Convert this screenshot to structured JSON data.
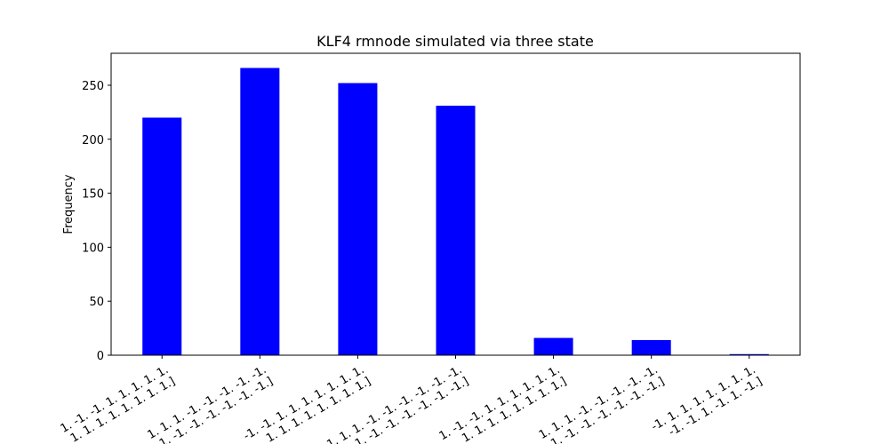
{
  "chart_data": {
    "type": "bar",
    "title": "KLF4 rmnode simulated via three state",
    "y_label": "Frequency",
    "categories": [
      [
        "1. -1. -1. 1. 1. 1. 1. 1.",
        "1. 1. 1. 1. 1. 1. 1. 1.]"
      ],
      [
        "1. 1. 1. -1. -1. -1. -1. -1.",
        "1. -1. -1. -1. -1. -1. -1. -1.]"
      ],
      [
        "-1. -1. 1. 1. 1. 1. 1. 1. 1.",
        "1. 1. 1. 1. 1. 1. 1. 1.]"
      ],
      [
        "1. 1. 1. -1. -1. -1. -1. -1. -1.",
        "-1. -1. -1. -1. -1. -1. -1. -1.]"
      ],
      [
        "1. -1. -1. 1. 1. 1. 1. 1. 1.",
        "1. 1. 1. 1. 1. 1. 1. 1.]"
      ],
      [
        "1. 1. 1. -1. -1. -1. -1. -1.",
        "-1. -1. -1. -1. -1. -1. -1. -1.]"
      ],
      [
        "-1. 1. 1. 1. 1. 1. 1. 1.",
        "-1. -1. 1. -1. 1. -1.]"
      ]
    ],
    "values": [
      220,
      266,
      252,
      231,
      16,
      14,
      1
    ],
    "color": "#0000ff",
    "ylim": [
      0,
      279.6
    ],
    "yticks": [
      0,
      50,
      100,
      150,
      200,
      250
    ],
    "grid": false
  }
}
